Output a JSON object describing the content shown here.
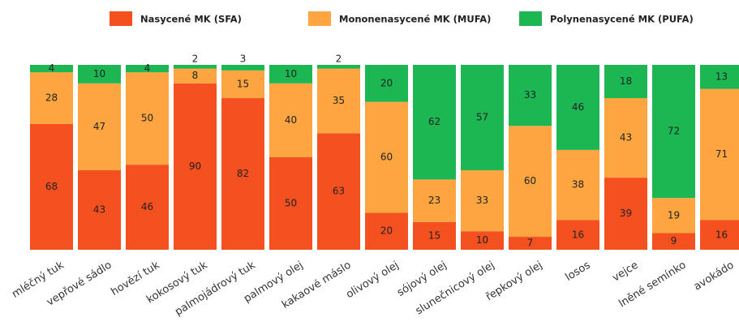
{
  "chart_data": {
    "type": "stacked_bar",
    "categories": [
      "mléčný tuk",
      "vepřové sádlo",
      "hovězí tuk",
      "kokosový tuk",
      "palmojádrový tuk",
      "palmový olej",
      "kakaové máslo",
      "olivový olej",
      "sójový olej",
      "slunečnicový olej",
      "řepkový olej",
      "losos",
      "vejce",
      "lněné semínko",
      "avokádo"
    ],
    "series": [
      {
        "name": "Nasycené MK (SFA)",
        "color": "#f5501f",
        "values": [
          68,
          43,
          46,
          90,
          82,
          50,
          63,
          20,
          15,
          10,
          7,
          16,
          39,
          9,
          16
        ]
      },
      {
        "name": "Mononenasycené MK (MUFA)",
        "color": "#fca541",
        "values": [
          28,
          47,
          50,
          8,
          15,
          40,
          35,
          60,
          23,
          33,
          60,
          38,
          43,
          19,
          71
        ]
      },
      {
        "name": "Polynenasycené MK (PUFA)",
        "color": "#1cb652",
        "values": [
          4,
          10,
          4,
          2,
          3,
          10,
          2,
          20,
          62,
          57,
          33,
          46,
          18,
          72,
          13
        ]
      }
    ],
    "ylim": [
      0,
      100
    ]
  }
}
